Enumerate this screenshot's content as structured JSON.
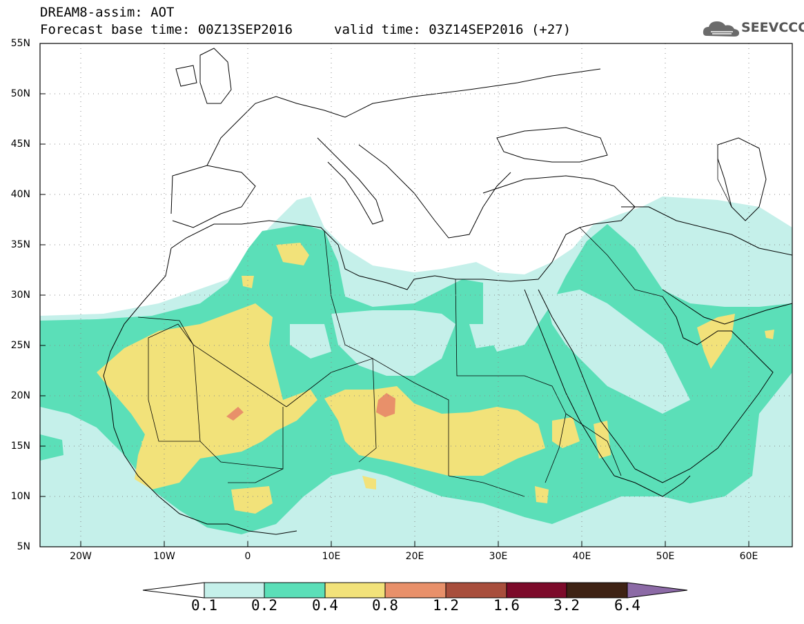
{
  "header": {
    "title_line1": "DREAM8-assim: AOT",
    "title_line2": "Forecast base time: 00Z13SEP2016",
    "valid_time": "valid time: 03Z14SEP2016 (+27)",
    "logo_text": "SEEVCCC",
    "logo_icon": "cloud-icon"
  },
  "map": {
    "lon_range": [
      -25,
      65
    ],
    "lat_range": [
      5,
      55
    ],
    "lat_labels": [
      "55N",
      "50N",
      "45N",
      "40N",
      "35N",
      "30N",
      "25N",
      "20N",
      "15N",
      "10N",
      "5N"
    ],
    "lon_labels": [
      "20W",
      "10W",
      "0",
      "10E",
      "20E",
      "30E",
      "40E",
      "50E",
      "60E"
    ],
    "gridlines": "dotted",
    "coastlines": true,
    "borders": true
  },
  "colorbar": {
    "levels": [
      "0.1",
      "0.2",
      "0.4",
      "0.8",
      "1.2",
      "1.6",
      "3.2",
      "6.4"
    ],
    "colors": [
      "#c5f0ea",
      "#5bdfb8",
      "#f2e27a",
      "#e8906a",
      "#a84e3c",
      "#7c0a2a",
      "#3e2214",
      "#8c6aa6"
    ],
    "extend": "both"
  }
}
